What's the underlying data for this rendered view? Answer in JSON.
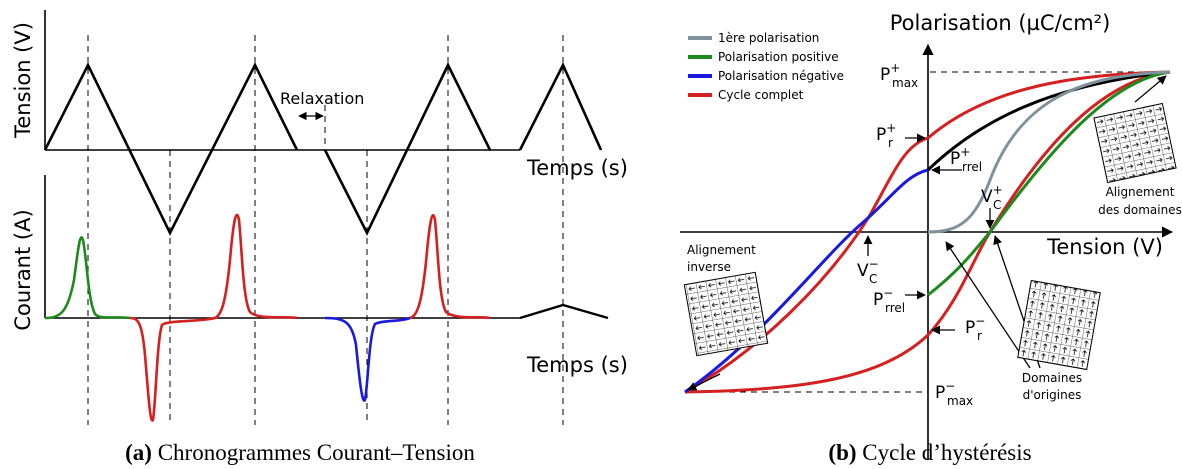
{
  "panel_a": {
    "caption_label": "(a)",
    "caption": "Chronogrammes Courant–Tension",
    "voltage_axis": "Tension (V)",
    "voltage_time_axis": "Temps (s)",
    "annotation": "Relaxation",
    "current_axis": "Courant (A)",
    "current_time_axis": "Temps (s)"
  },
  "panel_b": {
    "caption_label": "(b)",
    "caption": "Cycle d’hystérésis",
    "y_axis": "Polarisation (µC/cm²)",
    "x_axis": "Tension (V)",
    "legend": [
      {
        "name": "1ère polarisation",
        "color": "#7f929c"
      },
      {
        "name": "Polarisation positive",
        "color": "#1e8a1e"
      },
      {
        "name": "Polarisation négative",
        "color": "#1a1add"
      },
      {
        "name": "Cycle complet",
        "color": "#d42020"
      }
    ],
    "points": [
      {
        "base": "P",
        "sup": "+",
        "sub": "max"
      },
      {
        "base": "P",
        "sup": "+",
        "sub": "r"
      },
      {
        "base": "P",
        "sup": "+",
        "sub": "rrel"
      },
      {
        "base": "V",
        "sup": "+",
        "sub": "C"
      },
      {
        "base": "V",
        "sup": "−",
        "sub": "C"
      },
      {
        "base": "P",
        "sup": "−",
        "sub": "rrel"
      },
      {
        "base": "P",
        "sup": "−",
        "sub": "r"
      },
      {
        "base": "P",
        "sup": "−",
        "sub": "max"
      }
    ],
    "notes": [
      [
        "Alignement",
        "des domaines"
      ],
      [
        "Alignement",
        "inverse"
      ],
      [
        "Domaines",
        "d'origines"
      ]
    ]
  }
}
